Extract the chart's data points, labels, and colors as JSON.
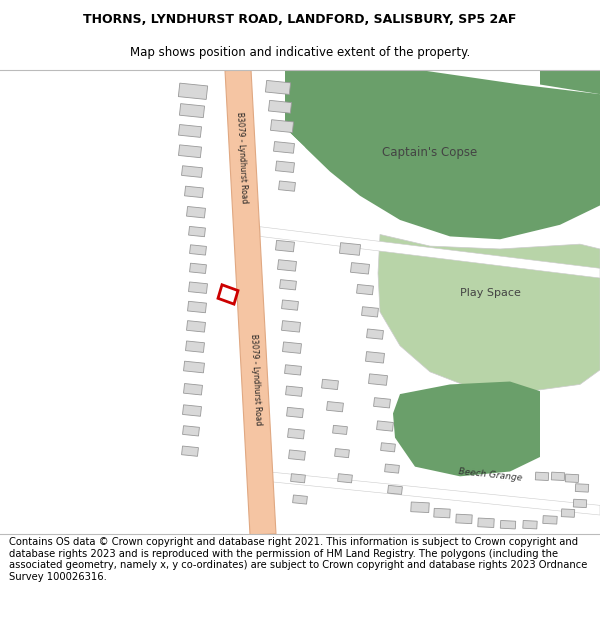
{
  "title_line1": "THORNS, LYNDHURST ROAD, LANDFORD, SALISBURY, SP5 2AF",
  "title_line2": "Map shows position and indicative extent of the property.",
  "footer_text": "Contains OS data © Crown copyright and database right 2021. This information is subject to Crown copyright and database rights 2023 and is reproduced with the permission of HM Land Registry. The polygons (including the associated geometry, namely x, y co-ordinates) are subject to Crown copyright and database rights 2023 Ordnance Survey 100026316.",
  "title_fontsize": 9.0,
  "footer_fontsize": 7.2,
  "map_bg": "#f2ede8",
  "road_color": "#f5c5a3",
  "road_edge": "#e0a882",
  "green_dark": "#6a9f6a",
  "green_light": "#b8d4a8",
  "building_color": "#d8d8d8",
  "building_edge": "#999999",
  "highlight_color": "#cc0000",
  "white_area": "#ffffff"
}
